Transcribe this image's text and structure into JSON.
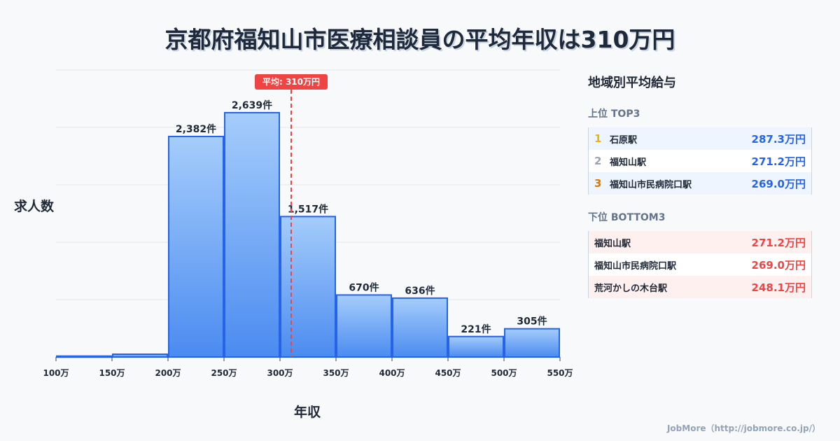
{
  "chart_data": {
    "type": "bar",
    "title": "京都府福知山市医療相談員の平均年収は310万円",
    "xlabel": "年収",
    "ylabel": "求人数",
    "x_ticks": [
      "100万",
      "150万",
      "200万",
      "250万",
      "300万",
      "350万",
      "400万",
      "450万",
      "500万",
      "550万"
    ],
    "bins": [
      [
        100,
        150
      ],
      [
        150,
        200
      ],
      [
        200,
        250
      ],
      [
        250,
        300
      ],
      [
        300,
        350
      ],
      [
        350,
        400
      ],
      [
        400,
        450
      ],
      [
        450,
        500
      ],
      [
        500,
        550
      ]
    ],
    "values": [
      10,
      30,
      2382,
      2639,
      1517,
      670,
      636,
      221,
      305
    ],
    "data_labels": [
      "",
      "",
      "2,382件",
      "2,639件",
      "1,517件",
      "670件",
      "636件",
      "221件",
      "305件"
    ],
    "average": 310,
    "average_label": "平均: 310万円",
    "xlim": [
      100,
      550
    ],
    "ylim": [
      0,
      3100
    ],
    "grid": true,
    "colors": {
      "bar_top": "#a5cdfb",
      "bar_bottom": "#4b8bf0",
      "bar_border": "#2563eb",
      "average": "#ef4444"
    }
  },
  "side": {
    "title": "地域別平均給与",
    "top_label": "上位 TOP3",
    "top": [
      {
        "rank": "1",
        "name": "石原駅",
        "value": "287.3万円",
        "color": "#eab308"
      },
      {
        "rank": "2",
        "name": "福知山駅",
        "value": "271.2万円",
        "color": "#9ca3af"
      },
      {
        "rank": "3",
        "name": "福知山市民病院口駅",
        "value": "269.0万円",
        "color": "#d97706"
      }
    ],
    "bottom_label": "下位 BOTTOM3",
    "bottom": [
      {
        "name": "福知山駅",
        "value": "271.2万円"
      },
      {
        "name": "福知山市民病院口駅",
        "value": "269.0万円"
      },
      {
        "name": "荒河かしの木台駅",
        "value": "248.1万円"
      }
    ]
  },
  "credit": "JobMore（http://jobmore.co.jp/）"
}
